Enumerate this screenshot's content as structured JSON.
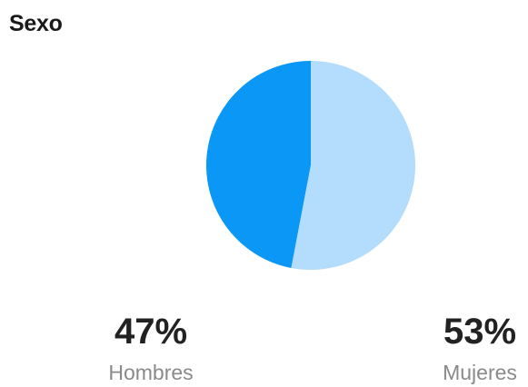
{
  "header": {
    "title": "Sexo"
  },
  "chart_data": {
    "type": "pie",
    "title": "Sexo",
    "categories": [
      "Hombres",
      "Mujeres"
    ],
    "values": [
      47,
      53
    ],
    "colors": [
      "#0a97f5",
      "#b3dcfd"
    ],
    "labels": [
      "47%",
      "53%"
    ],
    "start": "top",
    "direction": "counter-clockwise-first-slice"
  },
  "stats": [
    {
      "value": "47%",
      "label": "Hombres"
    },
    {
      "value": "53%",
      "label": "Mujeres"
    }
  ]
}
